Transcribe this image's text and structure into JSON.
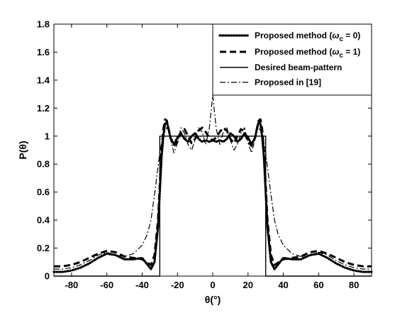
{
  "chart_data": {
    "type": "line",
    "xlabel": "θ(°)",
    "ylabel": "P(θ)",
    "xlim": [
      -90,
      90
    ],
    "ylim": [
      0,
      1.8
    ],
    "xticks": [
      -80,
      -60,
      -40,
      -20,
      0,
      20,
      40,
      60,
      80
    ],
    "yticks": [
      0,
      0.2,
      0.4,
      0.6,
      0.8,
      1,
      1.2,
      1.4,
      1.6,
      1.8
    ],
    "xtick_labels": [
      "-80",
      "-60",
      "-40",
      "-20",
      "0",
      "20",
      "40",
      "60",
      "80"
    ],
    "ytick_labels": [
      "0",
      "0.2",
      "0.4",
      "0.6",
      "0.8",
      "1",
      "1.2",
      "1.4",
      "1.6",
      "1.8"
    ],
    "grid": false,
    "legend_position": "top-right",
    "series": [
      {
        "name": "Proposed method (ω_c = 0)",
        "legend_main": "Proposed method (",
        "legend_symbol": "ω",
        "legend_sub": "c",
        "legend_tail": " = 0)",
        "style": "dotted",
        "x": [
          -90,
          -85,
          -80,
          -75,
          -70,
          -65,
          -60,
          -55,
          -50,
          -45,
          -40,
          -35,
          -33,
          -31,
          -30,
          -29,
          -28,
          -27,
          -26,
          -25,
          -24,
          -22,
          -20,
          -18,
          -16,
          -14,
          -12,
          -10,
          -8,
          -6,
          -4,
          -2,
          0,
          2,
          4,
          6,
          8,
          10,
          12,
          14,
          16,
          18,
          20,
          22,
          24,
          25,
          26,
          27,
          28,
          29,
          30,
          31,
          33,
          35,
          40,
          45,
          50,
          55,
          60,
          65,
          70,
          75,
          80,
          85,
          90
        ],
        "y": [
          0.03,
          0.03,
          0.04,
          0.06,
          0.09,
          0.13,
          0.16,
          0.15,
          0.12,
          0.12,
          0.13,
          0.05,
          0.1,
          0.35,
          0.6,
          0.85,
          1.0,
          1.09,
          1.1,
          1.05,
          0.99,
          0.94,
          0.99,
          1.02,
          0.98,
          0.96,
          1.0,
          1.02,
          0.98,
          0.96,
          0.97,
          0.96,
          0.97,
          0.96,
          0.97,
          0.96,
          0.98,
          1.02,
          1.0,
          0.96,
          0.98,
          1.02,
          0.99,
          0.94,
          0.99,
          1.05,
          1.1,
          1.09,
          1.0,
          0.85,
          0.6,
          0.35,
          0.1,
          0.05,
          0.13,
          0.12,
          0.12,
          0.15,
          0.16,
          0.13,
          0.09,
          0.06,
          0.04,
          0.03,
          0.03
        ]
      },
      {
        "name": "Proposed method (ω_c = 1)",
        "legend_main": "Proposed method (",
        "legend_symbol": "ω",
        "legend_sub": "c",
        "legend_tail": " = 1)",
        "style": "dashed",
        "x": [
          -90,
          -85,
          -80,
          -75,
          -70,
          -65,
          -60,
          -55,
          -50,
          -45,
          -40,
          -35,
          -33,
          -31,
          -30,
          -29,
          -28,
          -27,
          -26,
          -25,
          -24,
          -22,
          -20,
          -18,
          -16,
          -14,
          -12,
          -10,
          -8,
          -6,
          -4,
          -2,
          0,
          2,
          4,
          6,
          8,
          10,
          12,
          14,
          16,
          18,
          20,
          22,
          24,
          25,
          26,
          27,
          28,
          29,
          30,
          31,
          33,
          35,
          40,
          45,
          50,
          55,
          60,
          65,
          70,
          75,
          80,
          85,
          90
        ],
        "y": [
          0.07,
          0.07,
          0.08,
          0.1,
          0.13,
          0.16,
          0.18,
          0.17,
          0.14,
          0.13,
          0.12,
          0.08,
          0.15,
          0.4,
          0.65,
          0.9,
          1.05,
          1.12,
          1.11,
          1.05,
          0.99,
          0.93,
          0.96,
          1.03,
          1.05,
          1.0,
          0.95,
          0.98,
          1.04,
          1.06,
          1.03,
          0.99,
          0.97,
          0.99,
          1.03,
          1.06,
          1.04,
          0.98,
          0.95,
          1.0,
          1.05,
          1.03,
          0.96,
          0.93,
          0.99,
          1.05,
          1.11,
          1.12,
          1.05,
          0.9,
          0.65,
          0.4,
          0.15,
          0.08,
          0.12,
          0.13,
          0.14,
          0.17,
          0.18,
          0.16,
          0.13,
          0.1,
          0.08,
          0.07,
          0.07
        ]
      },
      {
        "name": "Desired beam-pattern",
        "legend_main": "Desired beam-pattern",
        "legend_symbol": "",
        "legend_sub": "",
        "legend_tail": "",
        "style": "solid",
        "x": [
          -90,
          -30,
          -30,
          30,
          30,
          90
        ],
        "y": [
          0,
          0,
          1,
          1,
          0,
          0
        ]
      },
      {
        "name": "Proposed in [19]",
        "legend_main": "Proposed in [19]",
        "legend_symbol": "",
        "legend_sub": "",
        "legend_tail": "",
        "style": "dashdot",
        "x": [
          -90,
          -85,
          -80,
          -75,
          -70,
          -65,
          -60,
          -55,
          -50,
          -45,
          -40,
          -37,
          -35,
          -33,
          -31,
          -30,
          -29,
          -28,
          -27,
          -26,
          -25,
          -24,
          -22,
          -20,
          -18,
          -16,
          -14,
          -12,
          -10,
          -8,
          -6,
          -4,
          -2,
          0,
          2,
          4,
          6,
          8,
          10,
          12,
          14,
          16,
          18,
          20,
          22,
          24,
          25,
          26,
          27,
          28,
          29,
          30,
          31,
          33,
          35,
          37,
          40,
          45,
          50,
          55,
          60,
          65,
          70,
          75,
          80,
          85,
          90
        ],
        "y": [
          0.05,
          0.05,
          0.06,
          0.08,
          0.11,
          0.15,
          0.17,
          0.15,
          0.14,
          0.16,
          0.22,
          0.3,
          0.4,
          0.58,
          0.78,
          0.88,
          0.95,
          1.0,
          1.04,
          1.06,
          1.04,
          0.98,
          0.88,
          0.95,
          1.06,
          1.02,
          0.94,
          0.9,
          0.97,
          1.06,
          1.03,
          0.94,
          1.05,
          1.29,
          1.05,
          0.94,
          1.03,
          1.06,
          0.97,
          0.9,
          0.94,
          1.02,
          1.06,
          0.95,
          0.88,
          0.98,
          1.04,
          1.06,
          1.04,
          1.0,
          0.95,
          0.88,
          0.78,
          0.58,
          0.4,
          0.3,
          0.22,
          0.16,
          0.14,
          0.15,
          0.17,
          0.15,
          0.11,
          0.08,
          0.06,
          0.05,
          0.05
        ]
      }
    ]
  }
}
